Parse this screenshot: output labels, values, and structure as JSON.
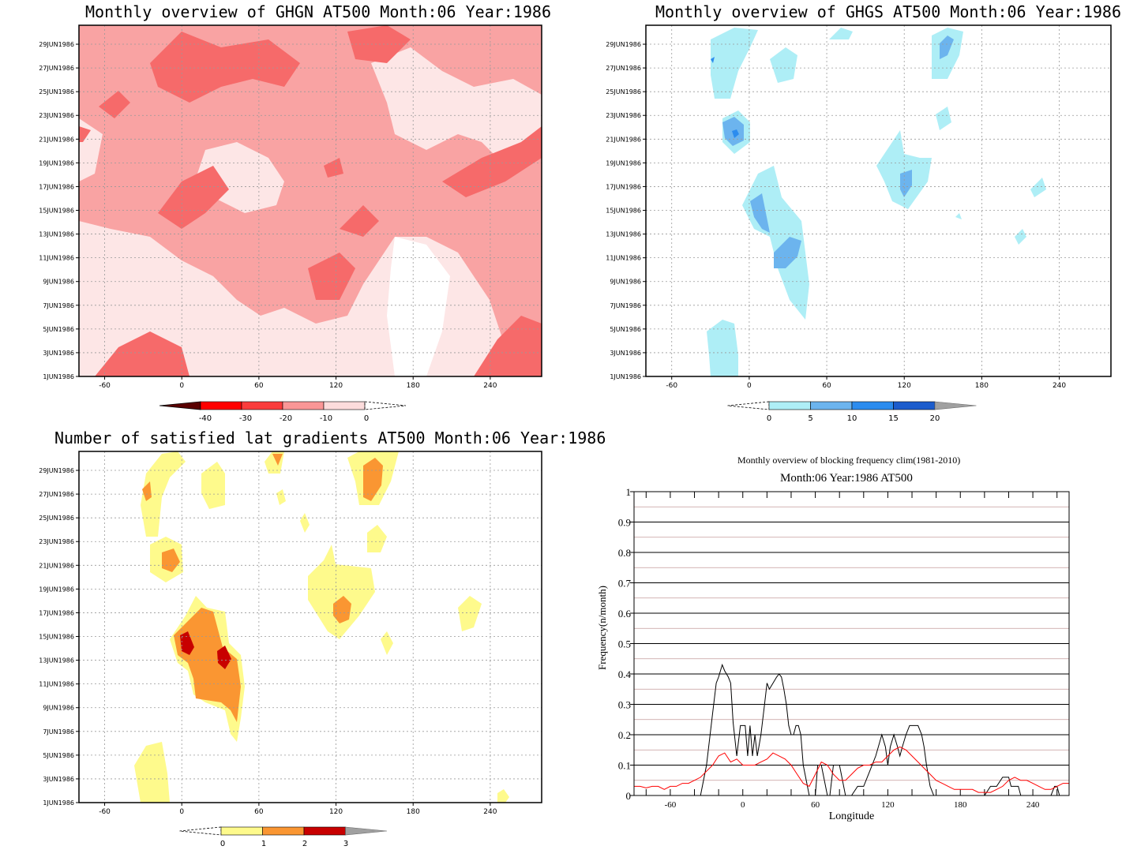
{
  "chart_data": [
    {
      "type": "heatmap",
      "title": "Monthly overview of GHGN AT500 Month:06 Year:1986",
      "x_ticks": [
        "-60",
        "0",
        "60",
        "120",
        "180",
        "240"
      ],
      "x_tick_values": [
        -60,
        0,
        60,
        120,
        180,
        240
      ],
      "y_ticks": [
        "1JUN1986",
        "3JUN1986",
        "5JUN1986",
        "7JUN1986",
        "9JUN1986",
        "11JUN1986",
        "13JUN1986",
        "15JUN1986",
        "17JUN1986",
        "19JUN1986",
        "21JUN1986",
        "23JUN1986",
        "25JUN1986",
        "27JUN1986",
        "29JUN1986"
      ],
      "xlim": [
        -80,
        280
      ],
      "colorbar": {
        "labels": [
          "-40",
          "-30",
          "-20",
          "-10",
          "0"
        ],
        "colors": [
          "#5a0000",
          "#ff0000",
          "#fa3c3c",
          "#fa9696",
          "#fcdcdc"
        ]
      },
      "palette": {
        "lightest": "#fde6e6",
        "light": "#f9a3a3",
        "mid": "#f66a6a",
        "dark": "#ee4040"
      }
    },
    {
      "type": "heatmap",
      "title": "Monthly overview of GHGS AT500 Month:06 Year:1986",
      "x_ticks": [
        "-60",
        "0",
        "60",
        "120",
        "180",
        "240"
      ],
      "x_tick_values": [
        -60,
        0,
        60,
        120,
        180,
        240
      ],
      "y_ticks": [
        "1JUN1986",
        "3JUN1986",
        "5JUN1986",
        "7JUN1986",
        "9JUN1986",
        "11JUN1986",
        "13JUN1986",
        "15JUN1986",
        "17JUN1986",
        "19JUN1986",
        "21JUN1986",
        "23JUN1986",
        "25JUN1986",
        "27JUN1986",
        "29JUN1986"
      ],
      "xlim": [
        -80,
        280
      ],
      "colorbar": {
        "labels": [
          "0",
          "5",
          "10",
          "15",
          "20"
        ],
        "colors": [
          "#aeeef6",
          "#6cb4ee",
          "#2c8cee",
          "#1c5ccc",
          "#a0a0a0"
        ]
      }
    },
    {
      "type": "heatmap",
      "title": "Number of satisfied lat gradients AT500 Month:06 Year:1986",
      "x_ticks": [
        "-60",
        "0",
        "60",
        "120",
        "180",
        "240"
      ],
      "x_tick_values": [
        -60,
        0,
        60,
        120,
        180,
        240
      ],
      "y_ticks": [
        "1JUN1986",
        "3JUN1986",
        "5JUN1986",
        "7JUN1986",
        "9JUN1986",
        "11JUN1986",
        "13JUN1986",
        "15JUN1986",
        "17JUN1986",
        "19JUN1986",
        "21JUN1986",
        "23JUN1986",
        "25JUN1986",
        "27JUN1986",
        "29JUN1986"
      ],
      "xlim": [
        -80,
        280
      ],
      "colorbar": {
        "labels": [
          "0",
          "1",
          "2",
          "3"
        ],
        "colors": [
          "#fefa8c",
          "#fa9632",
          "#c80000",
          "#a0a0a0"
        ]
      }
    },
    {
      "type": "line",
      "title": "Monthly overview of blocking frequency clim(1981-2010)",
      "subtitle": "Month:06 Year:1986  AT500",
      "xlabel": "Longitude",
      "ylabel": "Frequency(n/month)",
      "xlim": [
        -90,
        270
      ],
      "ylim": [
        0,
        1
      ],
      "x_ticks": [
        "-60",
        "0",
        "60",
        "120",
        "180",
        "240"
      ],
      "x_tick_values": [
        -60,
        0,
        60,
        120,
        180,
        240
      ],
      "y_ticks": [
        "0",
        "0.1",
        "0.2",
        "0.3",
        "0.4",
        "0.5",
        "0.6",
        "0.7",
        "0.8",
        "0.9",
        "1"
      ],
      "y_tick_values": [
        0,
        0.1,
        0.2,
        0.3,
        0.4,
        0.5,
        0.6,
        0.7,
        0.8,
        0.9,
        1
      ],
      "grid": true,
      "series": [
        {
          "color": "#000000",
          "x": [
            -90,
            -35,
            -30,
            -25,
            -22,
            -20,
            -17,
            -15,
            -12,
            -10,
            -8,
            -5,
            -2,
            0,
            2,
            4,
            6,
            8,
            10,
            12,
            15,
            18,
            20,
            22,
            25,
            28,
            30,
            32,
            34,
            36,
            38,
            40,
            42,
            44,
            46,
            48,
            50,
            55,
            60,
            62,
            65,
            70,
            72,
            75,
            80,
            85,
            90,
            95,
            100,
            105,
            110,
            115,
            118,
            120,
            122,
            125,
            128,
            130,
            132,
            135,
            138,
            140,
            142,
            145,
            148,
            150,
            152,
            155,
            158,
            160,
            165,
            170,
            175,
            180,
            200,
            205,
            210,
            215,
            218,
            220,
            222,
            225,
            228,
            230,
            235,
            240,
            245,
            250,
            255,
            258,
            260,
            262,
            265,
            270
          ],
          "y": [
            0,
            0,
            0.1,
            0.27,
            0.37,
            0.39,
            0.43,
            0.41,
            0.39,
            0.37,
            0.24,
            0.13,
            0.23,
            0.23,
            0.23,
            0.13,
            0.23,
            0.13,
            0.2,
            0.13,
            0.2,
            0.3,
            0.37,
            0.35,
            0.37,
            0.39,
            0.4,
            0.39,
            0.35,
            0.3,
            0.23,
            0.2,
            0.2,
            0.23,
            0.23,
            0.2,
            0.1,
            0,
            0,
            0.1,
            0.1,
            0,
            0,
            0.1,
            0.1,
            0,
            0,
            0.03,
            0.03,
            0.08,
            0.13,
            0.2,
            0.16,
            0.1,
            0.16,
            0.2,
            0.16,
            0.13,
            0.16,
            0.2,
            0.23,
            0.23,
            0.23,
            0.23,
            0.2,
            0.16,
            0.1,
            0.03,
            0,
            0,
            0,
            0,
            0,
            0,
            0,
            0.03,
            0.03,
            0.06,
            0.06,
            0.06,
            0.03,
            0.03,
            0.03,
            0,
            0,
            0,
            0,
            0,
            0,
            0.03,
            0.03,
            0,
            0,
            0
          ]
        },
        {
          "color": "#ff0000",
          "x": [
            -90,
            -85,
            -80,
            -75,
            -70,
            -65,
            -60,
            -55,
            -50,
            -45,
            -40,
            -35,
            -30,
            -25,
            -20,
            -15,
            -10,
            -5,
            0,
            5,
            10,
            15,
            20,
            25,
            30,
            35,
            40,
            45,
            50,
            55,
            60,
            65,
            70,
            75,
            80,
            85,
            90,
            95,
            100,
            105,
            110,
            115,
            120,
            125,
            130,
            135,
            140,
            145,
            150,
            155,
            160,
            165,
            170,
            175,
            180,
            185,
            190,
            195,
            200,
            205,
            210,
            215,
            220,
            225,
            230,
            235,
            240,
            245,
            250,
            255,
            260,
            265,
            270
          ],
          "y": [
            0.03,
            0.03,
            0.025,
            0.03,
            0.03,
            0.02,
            0.03,
            0.03,
            0.04,
            0.04,
            0.05,
            0.06,
            0.08,
            0.1,
            0.13,
            0.14,
            0.11,
            0.12,
            0.1,
            0.1,
            0.1,
            0.11,
            0.12,
            0.14,
            0.13,
            0.12,
            0.1,
            0.07,
            0.04,
            0.03,
            0.07,
            0.11,
            0.1,
            0.07,
            0.05,
            0.05,
            0.07,
            0.09,
            0.1,
            0.1,
            0.11,
            0.11,
            0.13,
            0.15,
            0.16,
            0.15,
            0.13,
            0.11,
            0.09,
            0.07,
            0.05,
            0.04,
            0.03,
            0.02,
            0.02,
            0.02,
            0.02,
            0.01,
            0.01,
            0.01,
            0.02,
            0.03,
            0.05,
            0.06,
            0.05,
            0.05,
            0.04,
            0.03,
            0.02,
            0.02,
            0.03,
            0.04,
            0.04
          ]
        }
      ]
    }
  ]
}
